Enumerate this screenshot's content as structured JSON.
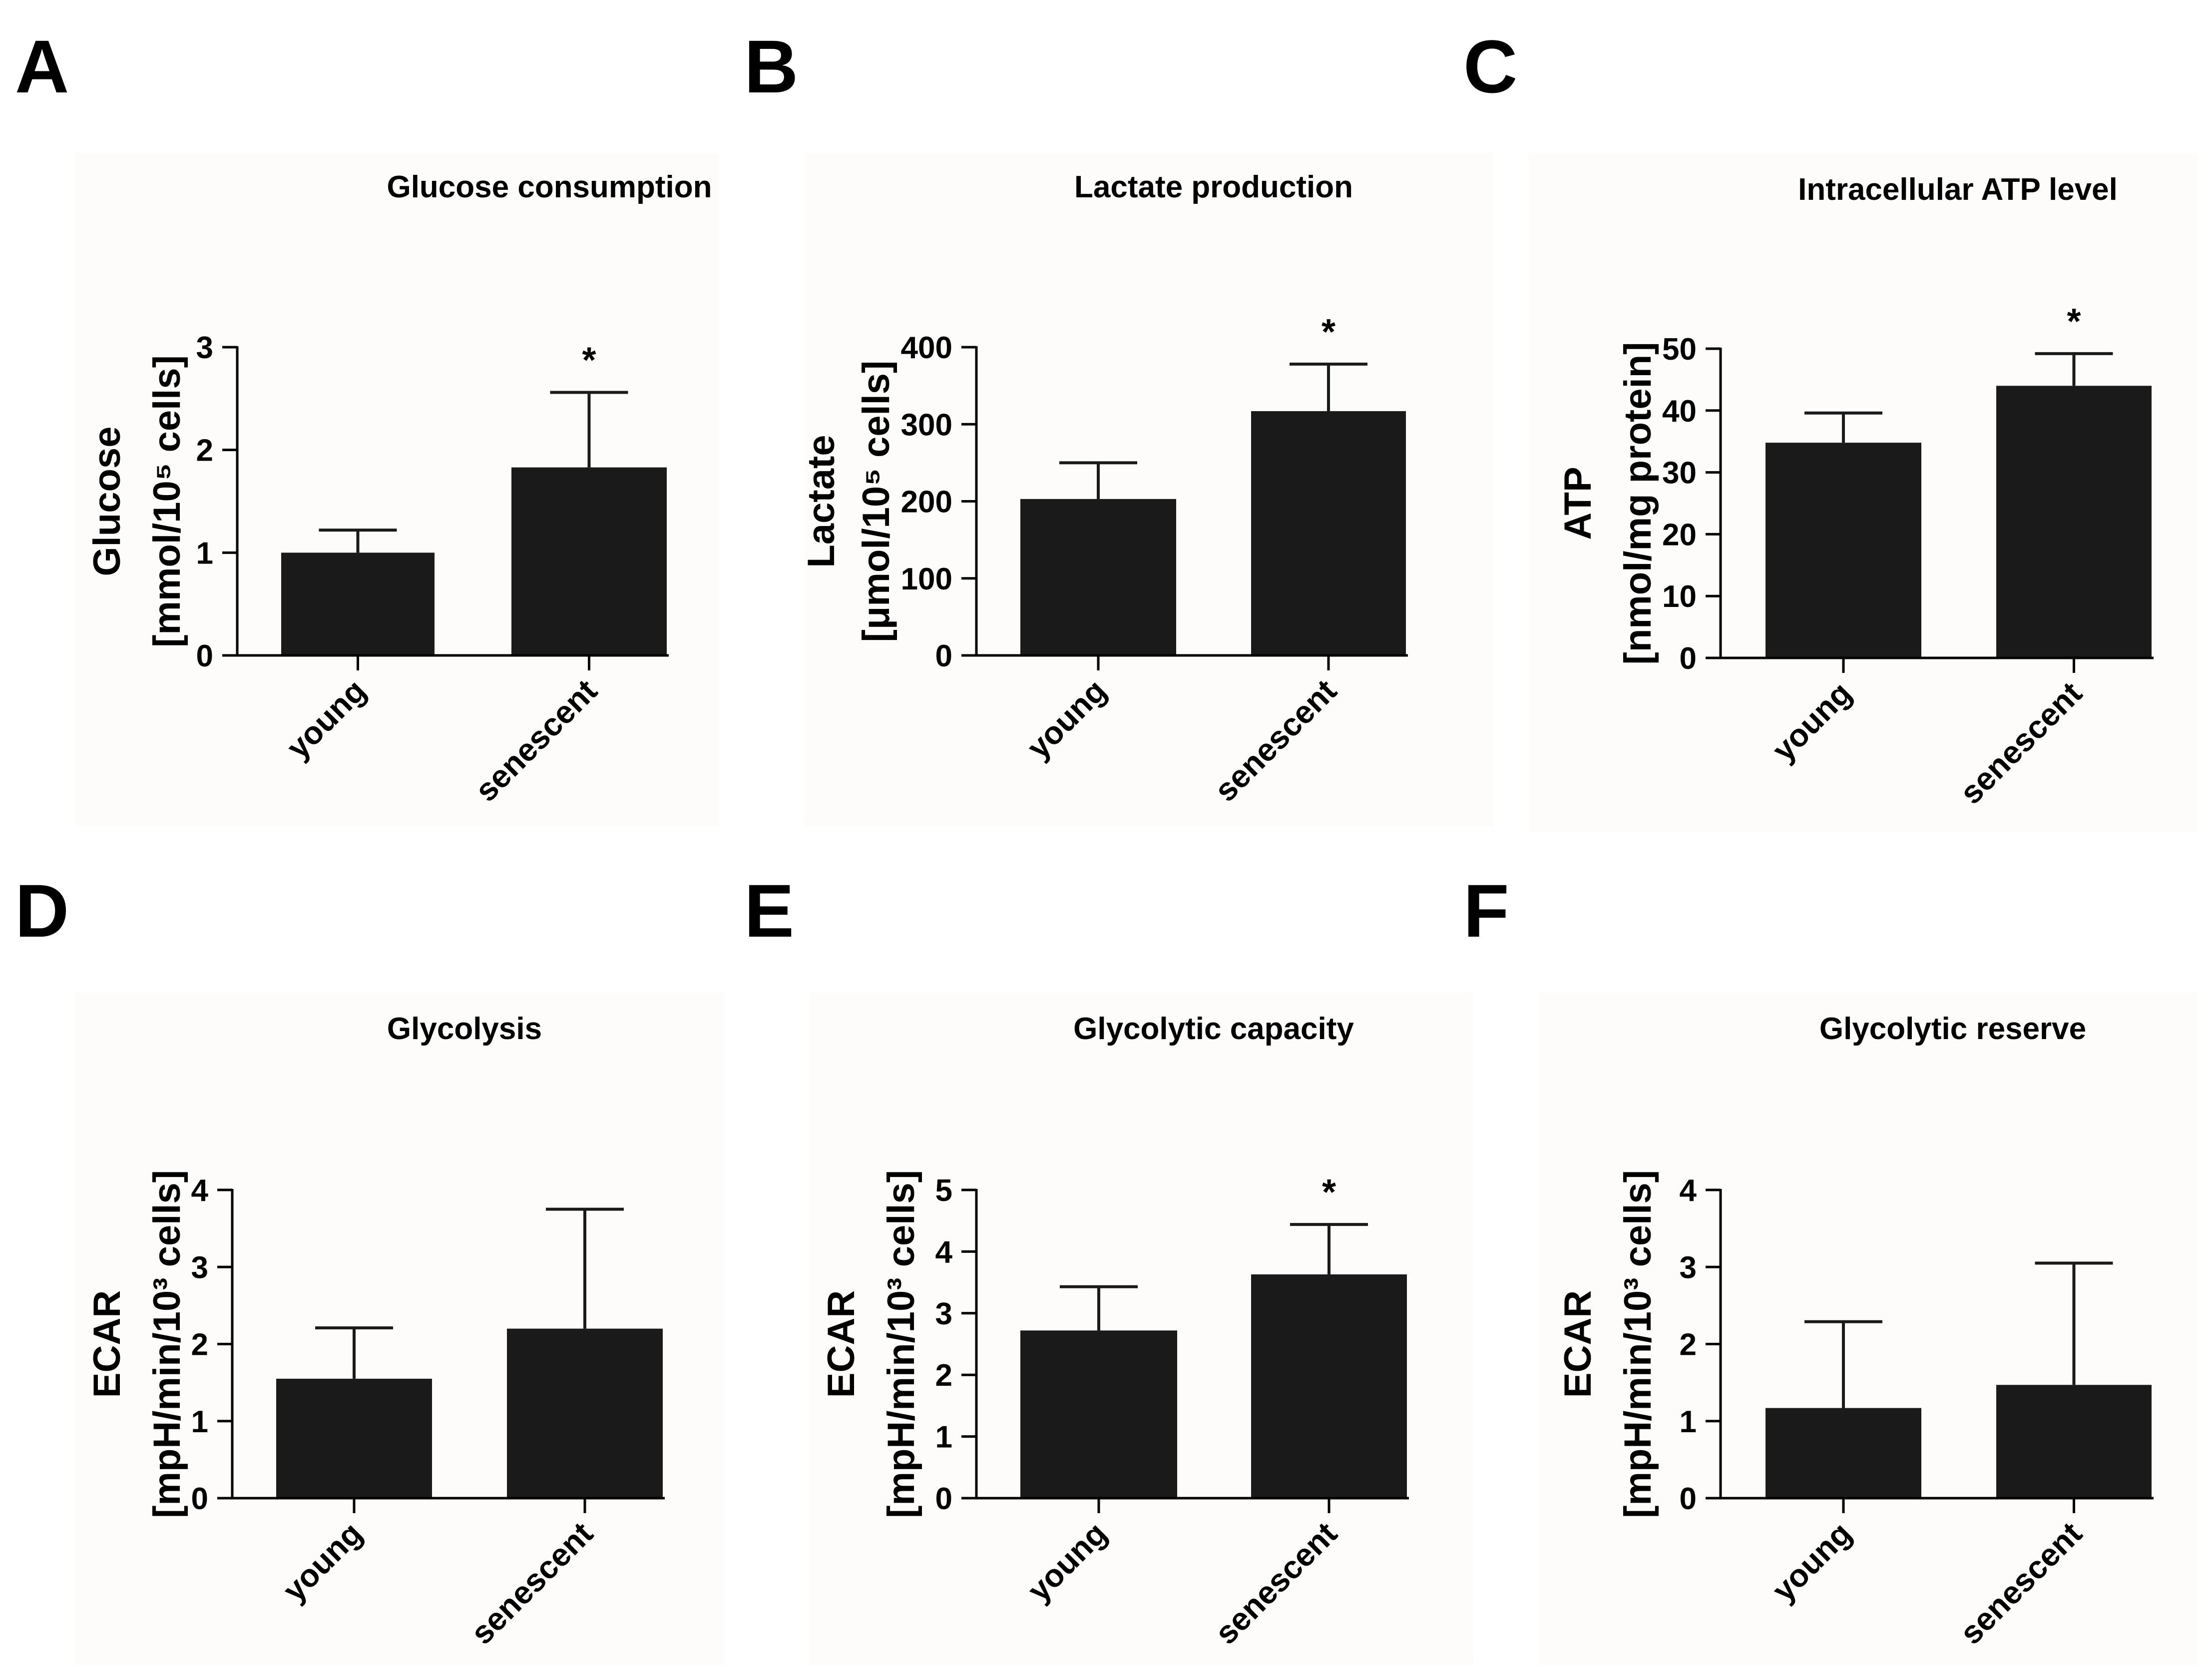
{
  "figure": {
    "panels": [
      "A",
      "B",
      "C",
      "D",
      "E",
      "F"
    ]
  },
  "chart_data": [
    {
      "type": "bar",
      "title": "Glucose consumption",
      "categories": [
        "young",
        "senescent"
      ],
      "values": [
        1.0,
        1.83
      ],
      "errors": [
        0.22,
        0.73
      ],
      "significance": [
        "",
        "*"
      ],
      "ylabel_line1": "Glucose",
      "ylabel_line2": "[mmol/10⁵ cells]",
      "ylim": [
        0,
        3
      ],
      "yticks": [
        0,
        1,
        2,
        3
      ]
    },
    {
      "type": "bar",
      "title": "Lactate production",
      "categories": [
        "young",
        "senescent"
      ],
      "values": [
        203,
        317
      ],
      "errors": [
        47,
        61
      ],
      "significance": [
        "",
        "*"
      ],
      "ylabel_line1": "Lactate",
      "ylabel_line2": "[μmol/10⁵ cells]",
      "ylim": [
        0,
        400
      ],
      "yticks": [
        0,
        100,
        200,
        300,
        400
      ]
    },
    {
      "type": "bar",
      "title": "Intracellular ATP level",
      "categories": [
        "young",
        "senescent"
      ],
      "values": [
        34.8,
        44.0
      ],
      "errors": [
        4.8,
        5.2
      ],
      "significance": [
        "",
        "*"
      ],
      "ylabel_line1": "ATP",
      "ylabel_line2": "[nmol/mg protein]",
      "ylim": [
        0,
        50
      ],
      "yticks": [
        0,
        10,
        20,
        30,
        40,
        50
      ]
    },
    {
      "type": "bar",
      "title": "Glycolysis",
      "categories": [
        "young",
        "senescent"
      ],
      "values": [
        1.55,
        2.2
      ],
      "errors": [
        0.66,
        1.55
      ],
      "significance": [
        "",
        ""
      ],
      "ylabel_line1": "ECAR",
      "ylabel_line2": "[mpH/min/10³ cells]",
      "ylim": [
        0,
        4
      ],
      "yticks": [
        0,
        1,
        2,
        3,
        4
      ]
    },
    {
      "type": "bar",
      "title": "Glycolytic capacity",
      "categories": [
        "young",
        "senescent"
      ],
      "values": [
        2.72,
        3.63
      ],
      "errors": [
        0.71,
        0.81
      ],
      "significance": [
        "",
        "*"
      ],
      "ylabel_line1": "ECAR",
      "ylabel_line2": "[mpH/min/10³ cells]",
      "ylim": [
        0,
        5
      ],
      "yticks": [
        0,
        1,
        2,
        3,
        4,
        5
      ]
    },
    {
      "type": "bar",
      "title": "Glycolytic reserve",
      "categories": [
        "young",
        "senescent"
      ],
      "values": [
        1.17,
        1.47
      ],
      "errors": [
        1.12,
        1.58
      ],
      "significance": [
        "",
        ""
      ],
      "ylabel_line1": "ECAR",
      "ylabel_line2": "[mpH/min/10³ cells]",
      "ylim": [
        0,
        4
      ],
      "yticks": [
        0,
        1,
        2,
        3,
        4
      ]
    }
  ],
  "style": {
    "bar_color": "#1a1a1a",
    "axis_color": "#000000",
    "panel_bg": "#fdfcfa"
  }
}
